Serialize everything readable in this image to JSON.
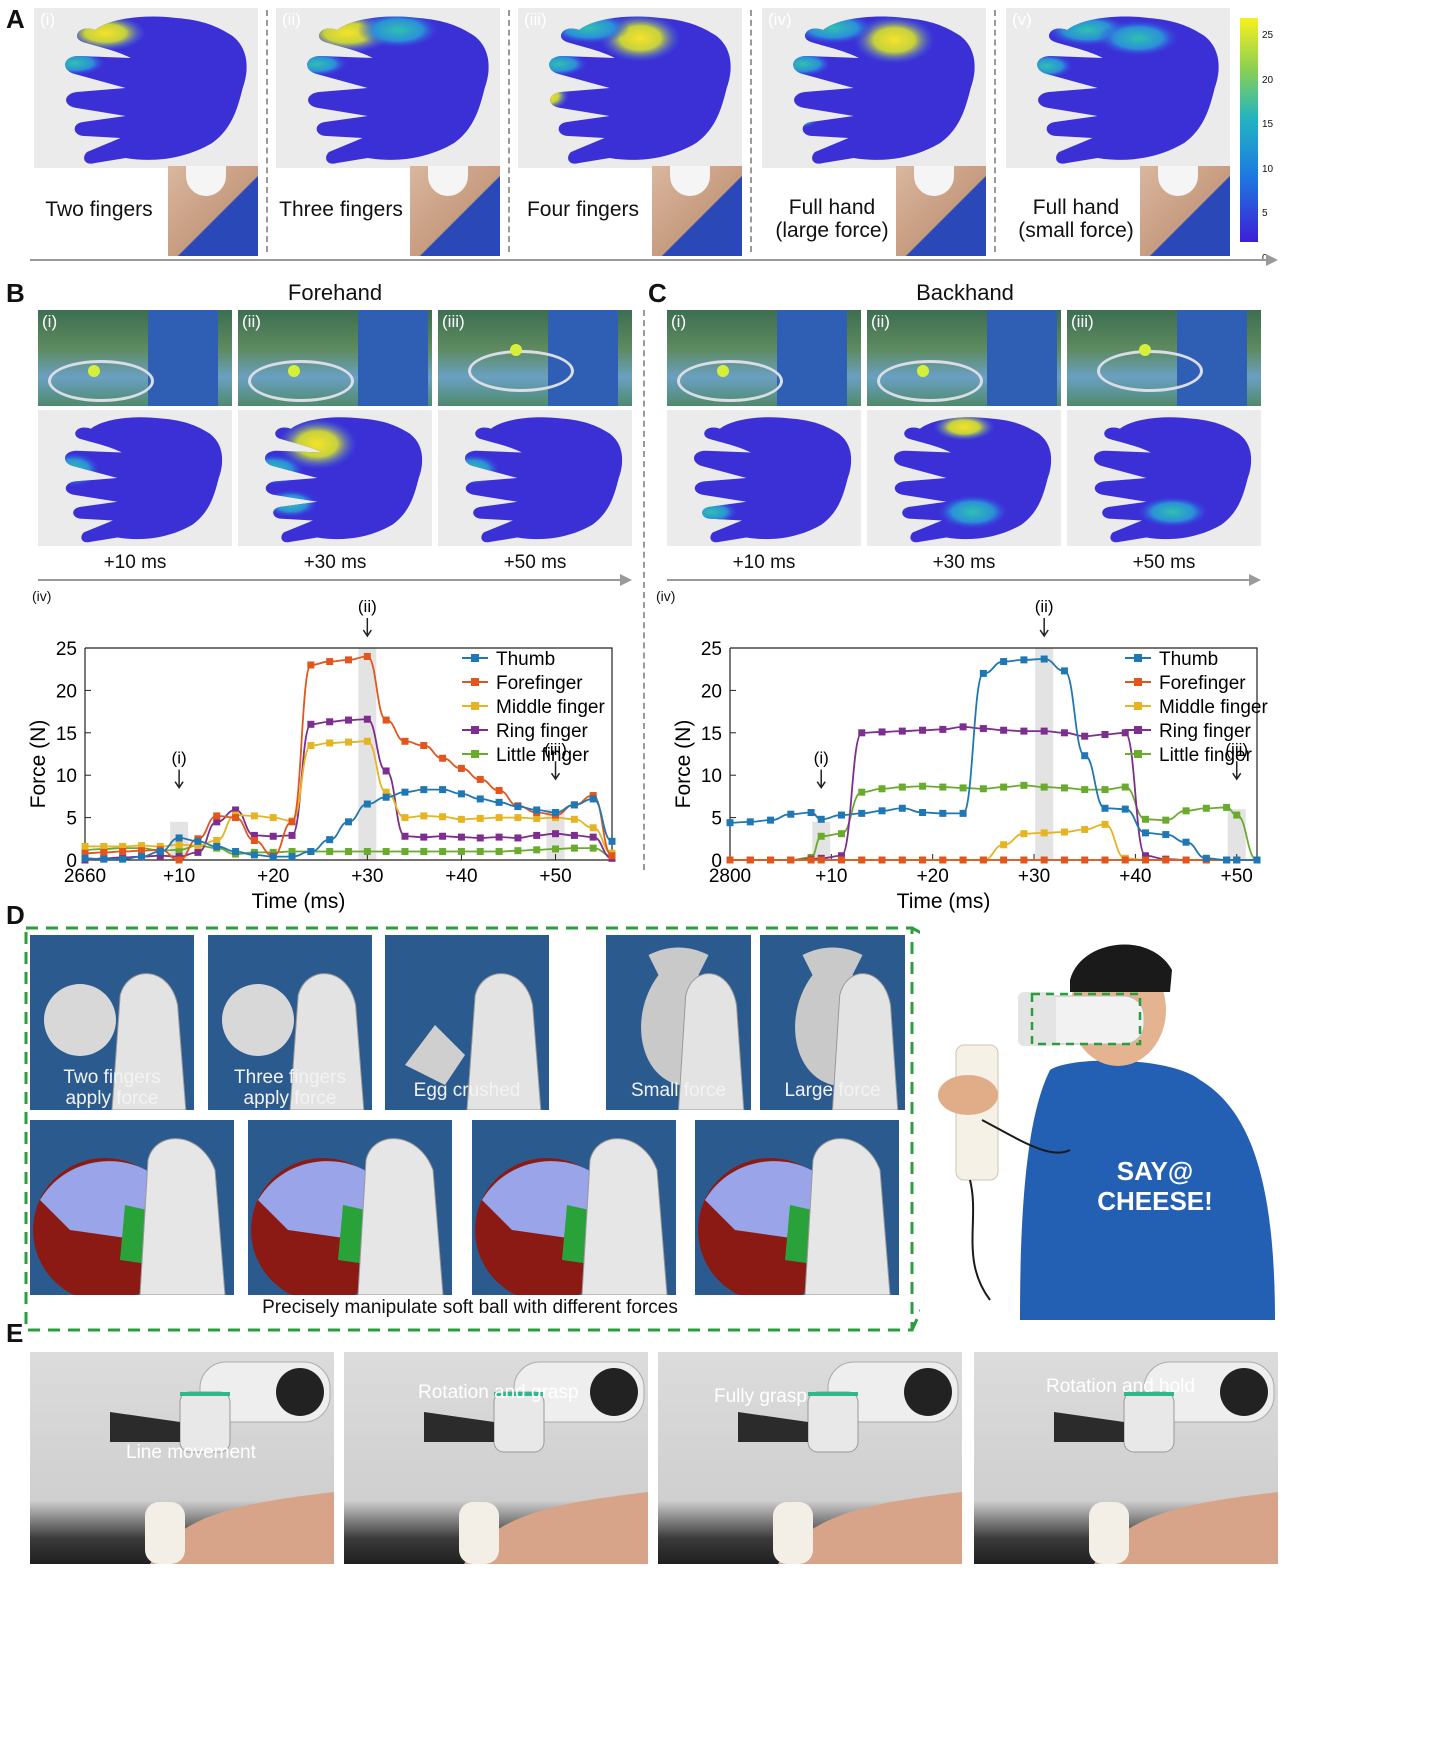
{
  "panels": {
    "A": {
      "letter": "A",
      "items": [
        {
          "roman": "(i)",
          "caption": "Two fingers"
        },
        {
          "roman": "(ii)",
          "caption": "Three fingers"
        },
        {
          "roman": "(iii)",
          "caption": "Four fingers"
        },
        {
          "roman": "(iv)",
          "caption": "Full hand\n(large force)"
        },
        {
          "roman": "(v)",
          "caption": "Full hand\n(small force)"
        }
      ],
      "colorbar_ticks": [
        "25",
        "20",
        "15",
        "10",
        "5",
        "0"
      ]
    },
    "B": {
      "letter": "B",
      "title": "Forehand",
      "frames": [
        "(i)",
        "(ii)",
        "(iii)"
      ],
      "times": [
        "+10 ms",
        "+30 ms",
        "+50 ms"
      ],
      "plot_tag": "(iv)"
    },
    "C": {
      "letter": "C",
      "title": "Backhand",
      "frames": [
        "(i)",
        "(ii)",
        "(iii)"
      ],
      "times": [
        "+10 ms",
        "+30 ms",
        "+50 ms"
      ],
      "plot_tag": "(iv)"
    },
    "D": {
      "letter": "D",
      "top_labels": [
        "Two fingers\napply force",
        "Three fingers\napply force",
        "Egg crushed",
        "Small force",
        "Large force"
      ],
      "bottom_caption": "Precisely manipulate soft ball with different forces",
      "shirt_text": "SAY@\nCHEESE!"
    },
    "E": {
      "letter": "E",
      "labels": [
        "Line movement",
        "Rotation and grasp",
        "Fully grasp",
        "Rotation and hold"
      ]
    }
  },
  "colors": {
    "Thumb": "#1f77b4",
    "Forefinger": "#e0561c",
    "Middle finger": "#e6b422",
    "Ring finger": "#7d2e8e",
    "Little finger": "#6aab2e"
  },
  "chart_data": [
    {
      "type": "line",
      "panel": "B(iv)",
      "xlabel": "Time (ms)",
      "ylabel": "Force (N)",
      "xlim": [
        0,
        56
      ],
      "ylim": [
        0,
        25
      ],
      "xticks": [
        0,
        10,
        20,
        30,
        40,
        50
      ],
      "xticklabels": [
        "2660",
        "+10",
        "+20",
        "+30",
        "+40",
        "+50"
      ],
      "yticks": [
        0,
        5,
        10,
        15,
        20,
        25
      ],
      "legend": "top-right",
      "annotations": [
        {
          "label": "(i)",
          "x": 10
        },
        {
          "label": "(ii)",
          "x": 30
        },
        {
          "label": "(iii)",
          "x": 50
        }
      ],
      "x": [
        0,
        2,
        4,
        6,
        8,
        10,
        12,
        14,
        16,
        18,
        20,
        22,
        24,
        26,
        28,
        30,
        32,
        34,
        36,
        38,
        40,
        42,
        44,
        46,
        48,
        50,
        52,
        54,
        56
      ],
      "series": [
        {
          "name": "Thumb",
          "values": [
            0.2,
            0.1,
            0.1,
            0.4,
            1.0,
            2.6,
            2.2,
            1.6,
            1.0,
            0.6,
            0.4,
            0.4,
            1.0,
            2.4,
            4.5,
            6.6,
            7.4,
            8.0,
            8.3,
            8.3,
            7.8,
            7.2,
            6.8,
            6.3,
            5.9,
            5.6,
            6.5,
            7.2,
            2.2
          ]
        },
        {
          "name": "Forefinger",
          "values": [
            0.8,
            0.9,
            1.0,
            1.1,
            1.2,
            0.0,
            2.5,
            5.2,
            5.0,
            2.3,
            0.5,
            4.5,
            23.0,
            23.4,
            23.6,
            24.0,
            16.5,
            14.0,
            13.5,
            12.0,
            10.8,
            9.5,
            8.2,
            6.4,
            5.6,
            5.3,
            6.5,
            7.6,
            0.5
          ]
        },
        {
          "name": "Middle finger",
          "values": [
            1.6,
            1.6,
            1.6,
            1.7,
            1.6,
            1.8,
            1.7,
            2.3,
            5.3,
            5.2,
            5.0,
            4.6,
            13.5,
            13.8,
            13.9,
            14.0,
            8.0,
            5.0,
            5.2,
            5.1,
            4.8,
            4.9,
            5.0,
            5.0,
            4.9,
            5.0,
            4.8,
            3.8,
            0.8
          ]
        },
        {
          "name": "Ring finger",
          "values": [
            0.0,
            0.2,
            0.3,
            0.4,
            0.5,
            0.4,
            0.9,
            4.5,
            5.9,
            2.9,
            2.8,
            2.9,
            16.0,
            16.3,
            16.5,
            16.6,
            10.5,
            2.8,
            2.7,
            2.8,
            2.7,
            2.6,
            2.7,
            2.6,
            2.9,
            3.1,
            2.9,
            2.7,
            0.2
          ]
        },
        {
          "name": "Little finger",
          "values": [
            1.2,
            1.3,
            1.4,
            1.4,
            1.1,
            1.2,
            1.7,
            1.4,
            0.7,
            0.9,
            0.9,
            1.0,
            1.0,
            1.0,
            1.0,
            1.0,
            1.0,
            1.0,
            1.0,
            1.0,
            1.0,
            1.0,
            1.0,
            1.1,
            1.2,
            1.3,
            1.4,
            1.4,
            0.5
          ]
        }
      ]
    },
    {
      "type": "line",
      "panel": "C(iv)",
      "xlabel": "Time (ms)",
      "ylabel": "Force (N)",
      "xlim": [
        0,
        52
      ],
      "ylim": [
        0,
        25
      ],
      "xticks": [
        0,
        10,
        20,
        30,
        40,
        50
      ],
      "xticklabels": [
        "2800",
        "+10",
        "+20",
        "+30",
        "+40",
        "+50"
      ],
      "yticks": [
        0,
        5,
        10,
        15,
        20,
        25
      ],
      "legend": "top-right",
      "annotations": [
        {
          "label": "(i)",
          "x": 9
        },
        {
          "label": "(ii)",
          "x": 31
        },
        {
          "label": "(iii)",
          "x": 50
        }
      ],
      "x": [
        0,
        2,
        4,
        6,
        8,
        9,
        11,
        13,
        15,
        17,
        19,
        21,
        23,
        25,
        27,
        29,
        31,
        33,
        35,
        37,
        39,
        41,
        43,
        45,
        47,
        49,
        50,
        52
      ],
      "series": [
        {
          "name": "Thumb",
          "values": [
            4.4,
            4.5,
            4.7,
            5.4,
            5.6,
            4.8,
            5.3,
            5.5,
            5.8,
            6.1,
            5.6,
            5.5,
            5.5,
            22.0,
            23.4,
            23.6,
            23.7,
            22.3,
            12.3,
            6.1,
            6.0,
            3.2,
            3.0,
            2.1,
            0.2,
            0.0,
            0.0,
            0.0
          ]
        },
        {
          "name": "Forefinger",
          "values": [
            0,
            0,
            0,
            0,
            0,
            0,
            0,
            0,
            0,
            0,
            0,
            0,
            0,
            0,
            0,
            0,
            0,
            0,
            0,
            0,
            0,
            0,
            0,
            0,
            0,
            0,
            0,
            0
          ]
        },
        {
          "name": "Middle finger",
          "values": [
            0,
            0,
            0,
            0,
            0,
            0,
            0,
            0,
            0,
            0,
            0,
            0,
            0,
            0,
            1.8,
            3.1,
            3.2,
            3.3,
            3.6,
            4.2,
            0.2,
            0,
            0,
            0,
            0,
            0,
            0,
            0
          ]
        },
        {
          "name": "Ring finger",
          "values": [
            0,
            0,
            0,
            0,
            0.1,
            0.2,
            0.5,
            15.0,
            15.1,
            15.2,
            15.3,
            15.4,
            15.7,
            15.5,
            15.3,
            15.2,
            15.2,
            15.0,
            14.6,
            14.8,
            15.0,
            0.5,
            0.1,
            0.0,
            0.0,
            0.0,
            0.0,
            0.0
          ]
        },
        {
          "name": "Little finger",
          "values": [
            0,
            0,
            0,
            0,
            0.3,
            2.8,
            3.1,
            8.0,
            8.4,
            8.6,
            8.7,
            8.6,
            8.5,
            8.4,
            8.6,
            8.8,
            8.6,
            8.5,
            8.3,
            8.3,
            8.6,
            4.8,
            4.7,
            5.8,
            6.1,
            6.2,
            5.3,
            0.0
          ]
        }
      ]
    }
  ]
}
